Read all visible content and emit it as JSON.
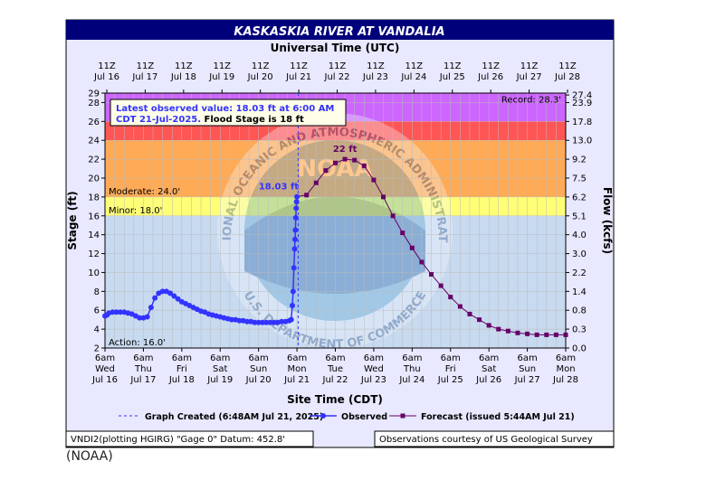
{
  "chart_data": {
    "type": "line",
    "title": "KASKASKIA RIVER AT VANDALIA",
    "top_axis_label": "Universal Time (UTC)",
    "xlabel": "Site Time (CDT)",
    "ylabel": "Stage (ft)",
    "ylabel_right": "Flow (kcfs)",
    "ylim": [
      2,
      29
    ],
    "yticks": [
      2,
      4,
      6,
      8,
      10,
      12,
      14,
      16,
      18,
      20,
      22,
      24,
      26,
      28,
      29
    ],
    "right_ticks": [
      {
        "stage": 28.8,
        "label": "27.4"
      },
      {
        "stage": 28.0,
        "label": "23.9"
      },
      {
        "stage": 26.0,
        "label": "17.8"
      },
      {
        "stage": 24.0,
        "label": "13.0"
      },
      {
        "stage": 22.0,
        "label": "9.2"
      },
      {
        "stage": 20.0,
        "label": "7.5"
      },
      {
        "stage": 18.0,
        "label": "6.2"
      },
      {
        "stage": 16.0,
        "label": "5.1"
      },
      {
        "stage": 14.0,
        "label": "4.0"
      },
      {
        "stage": 12.0,
        "label": "3.0"
      },
      {
        "stage": 10.0,
        "label": "2.2"
      },
      {
        "stage": 8.0,
        "label": "1.4"
      },
      {
        "stage": 6.0,
        "label": "0.8"
      },
      {
        "stage": 4.0,
        "label": "0.3"
      },
      {
        "stage": 2.0,
        "label": "0.0"
      }
    ],
    "x_domain_days": [
      -5.0,
      7.0
    ],
    "bottom_ticks": [
      {
        "l1": "6am",
        "l2": "Wed",
        "l3": "Jul 16"
      },
      {
        "l1": "6am",
        "l2": "Thu",
        "l3": "Jul 17"
      },
      {
        "l1": "6am",
        "l2": "Fri",
        "l3": "Jul 18"
      },
      {
        "l1": "6am",
        "l2": "Sat",
        "l3": "Jul 19"
      },
      {
        "l1": "6am",
        "l2": "Sun",
        "l3": "Jul 20"
      },
      {
        "l1": "6am",
        "l2": "Mon",
        "l3": "Jul 21"
      },
      {
        "l1": "6am",
        "l2": "Tue",
        "l3": "Jul 22"
      },
      {
        "l1": "6am",
        "l2": "Wed",
        "l3": "Jul 23"
      },
      {
        "l1": "6am",
        "l2": "Thu",
        "l3": "Jul 24"
      },
      {
        "l1": "6am",
        "l2": "Fri",
        "l3": "Jul 25"
      },
      {
        "l1": "6am",
        "l2": "Sat",
        "l3": "Jul 26"
      },
      {
        "l1": "6am",
        "l2": "Sun",
        "l3": "Jul 27"
      },
      {
        "l1": "6am",
        "l2": "Mon",
        "l3": "Jul 28"
      }
    ],
    "top_ticks": [
      {
        "l1": "11Z",
        "l2": "Jul 16"
      },
      {
        "l1": "11Z",
        "l2": "Jul 17"
      },
      {
        "l1": "11Z",
        "l2": "Jul 18"
      },
      {
        "l1": "11Z",
        "l2": "Jul 19"
      },
      {
        "l1": "11Z",
        "l2": "Jul 20"
      },
      {
        "l1": "11Z",
        "l2": "Jul 21"
      },
      {
        "l1": "11Z",
        "l2": "Jul 22"
      },
      {
        "l1": "11Z",
        "l2": "Jul 23"
      },
      {
        "l1": "11Z",
        "l2": "Jul 24"
      },
      {
        "l1": "11Z",
        "l2": "Jul 25"
      },
      {
        "l1": "11Z",
        "l2": "Jul 26"
      },
      {
        "l1": "11Z",
        "l2": "Jul 27"
      },
      {
        "l1": "11Z",
        "l2": "Jul 28"
      }
    ],
    "flood_bands": [
      {
        "label": "",
        "from": 26.0,
        "to": 29,
        "color": "#cc66ff"
      },
      {
        "label": "",
        "from": 24.0,
        "to": 26.0,
        "color": "#ff5555"
      },
      {
        "label": "Moderate: 24.0'",
        "from": 18.0,
        "to": 24.0,
        "color": "#ffaa55"
      },
      {
        "label": "Minor: 18.0'",
        "from": 16.0,
        "to": 18.0,
        "color": "#ffff77"
      },
      {
        "label": "Action: 16.0'",
        "from": 2,
        "to": 16.0,
        "color": "#c8daf0"
      }
    ],
    "record": {
      "label": "Record: 28.3'",
      "value": 28.3
    },
    "info_box": {
      "line1": "Latest observed value: 18.03 ft at 6:00 AM",
      "line2a": "CDT 21-Jul-2025.",
      "line2b": " Flood Stage is 18 ft"
    },
    "annotations": {
      "observed_label": "18.03 ft",
      "forecast_crest_label": "22 ft"
    },
    "graph_created_day": 0.03,
    "series": [
      {
        "name": "Observed",
        "color": "#3333ff",
        "x": [
          -5.0,
          -4.95,
          -4.9,
          -4.8,
          -4.7,
          -4.6,
          -4.5,
          -4.4,
          -4.3,
          -4.2,
          -4.1,
          -4.0,
          -3.9,
          -3.8,
          -3.7,
          -3.6,
          -3.5,
          -3.4,
          -3.3,
          -3.2,
          -3.1,
          -3.0,
          -2.9,
          -2.8,
          -2.7,
          -2.6,
          -2.5,
          -2.4,
          -2.3,
          -2.2,
          -2.1,
          -2.0,
          -1.9,
          -1.8,
          -1.7,
          -1.6,
          -1.5,
          -1.4,
          -1.3,
          -1.2,
          -1.1,
          -1.0,
          -0.9,
          -0.8,
          -0.7,
          -0.6,
          -0.5,
          -0.4,
          -0.3,
          -0.2,
          -0.15,
          -0.12,
          -0.1,
          -0.08,
          -0.06,
          -0.05,
          -0.04,
          -0.03,
          -0.02,
          -0.01,
          0.0
        ],
        "y": [
          5.4,
          5.5,
          5.7,
          5.8,
          5.8,
          5.8,
          5.8,
          5.7,
          5.6,
          5.4,
          5.2,
          5.2,
          5.3,
          6.3,
          7.3,
          7.8,
          8.0,
          8.0,
          7.8,
          7.5,
          7.2,
          6.9,
          6.7,
          6.5,
          6.3,
          6.1,
          5.9,
          5.8,
          5.6,
          5.5,
          5.4,
          5.3,
          5.2,
          5.1,
          5.0,
          5.0,
          4.9,
          4.9,
          4.8,
          4.8,
          4.7,
          4.7,
          4.7,
          4.7,
          4.7,
          4.7,
          4.7,
          4.8,
          4.8,
          4.9,
          5.0,
          6.5,
          8.0,
          10.5,
          12.5,
          13.5,
          14.5,
          15.8,
          16.8,
          17.5,
          18.03
        ]
      },
      {
        "name": "Forecast (issued 5:44AM Jul 21)",
        "color": "#660066",
        "x": [
          0.25,
          0.5,
          0.75,
          1.0,
          1.25,
          1.5,
          1.75,
          2.0,
          2.25,
          2.5,
          2.75,
          3.0,
          3.25,
          3.5,
          3.75,
          4.0,
          4.25,
          4.5,
          4.75,
          5.0,
          5.25,
          5.5,
          5.75,
          6.0,
          6.25,
          6.5,
          6.75,
          7.0
        ],
        "y": [
          18.2,
          19.5,
          20.8,
          21.6,
          22.0,
          21.9,
          21.3,
          19.8,
          18.0,
          16.0,
          14.2,
          12.6,
          11.1,
          9.8,
          8.6,
          7.4,
          6.4,
          5.6,
          5.0,
          4.4,
          4.0,
          3.8,
          3.6,
          3.5,
          3.4,
          3.4,
          3.4,
          3.4
        ]
      }
    ]
  },
  "legend": {
    "graph_created": "Graph Created (6:48AM Jul 21, 2025)",
    "observed": "Observed",
    "forecast": "Forecast (issued 5:44AM Jul 21)"
  },
  "footer": {
    "left": "VNDI2(plotting HGIRG) \"Gage 0\" Datum: 452.8'",
    "right": "Observations courtesy of US Geological Survey"
  },
  "caption": "(NOAA)",
  "watermark": {
    "top": "NATIONAL OCEANIC AND ATMOSPHERIC ADMINISTRATION",
    "bottom": "U.S. DEPARTMENT OF COMMERCE",
    "center": "NOAA"
  }
}
